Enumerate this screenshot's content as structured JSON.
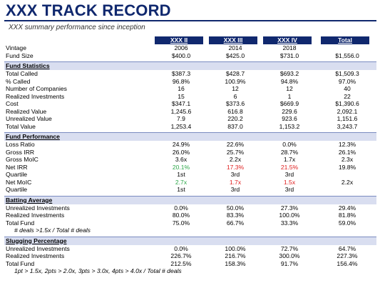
{
  "title": "XXX TRACK RECORD",
  "subtitle": "XXX summary performance since inception",
  "columns": [
    "XXX II",
    "XXX III",
    "XXX IV",
    "Total"
  ],
  "top_rows": [
    {
      "label": "Vintage",
      "values": [
        "2006",
        "2014",
        "2018",
        ""
      ]
    },
    {
      "label": "Fund Size",
      "values": [
        "$400.0",
        "$425.0",
        "$731.0",
        "$1,556.0"
      ]
    }
  ],
  "sections": [
    {
      "title": "Fund Statistics",
      "rows": [
        {
          "label": "Total Called",
          "values": [
            "$387.3",
            "$428.7",
            "$693.2",
            "$1,509.3"
          ]
        },
        {
          "label": "% Called",
          "values": [
            "96.8%",
            "100.9%",
            "94.8%",
            "97.0%"
          ]
        },
        {
          "label": "Number of Companies",
          "values": [
            "16",
            "12",
            "12",
            "40"
          ]
        },
        {
          "label": "Realized Investments",
          "values": [
            "15",
            "6",
            "1",
            "22"
          ]
        },
        {
          "label": "Cost",
          "values": [
            "$347.1",
            "$373.6",
            "$669.9",
            "$1,390.6"
          ]
        },
        {
          "label": "Realized Value",
          "values": [
            "1,245.6",
            "616.8",
            "229.6",
            "2,092.1"
          ]
        },
        {
          "label": "Unrealized Value",
          "values": [
            "7.9",
            "220.2",
            "923.6",
            "1,151.6"
          ]
        },
        {
          "label": "Total Value",
          "values": [
            "1,253.4",
            "837.0",
            "1,153.2",
            "3,243.7"
          ]
        }
      ]
    },
    {
      "title": "Fund Performance",
      "rows": [
        {
          "label": "Loss Ratio",
          "values": [
            "24.9%",
            "22.6%",
            "0.0%",
            "12.3%"
          ]
        },
        {
          "label": "Gross IRR",
          "values": [
            "26.0%",
            "25.7%",
            "28.7%",
            "26.1%"
          ]
        },
        {
          "label": "Gross MoIC",
          "values": [
            "3.6x",
            "2.2x",
            "1.7x",
            "2.3x"
          ]
        },
        {
          "label": "Net IRR",
          "values": [
            "20.1%",
            "17.3%",
            "21.5%",
            "19.8%"
          ],
          "colors": [
            "green",
            "red",
            "red",
            ""
          ]
        },
        {
          "label": "Quartile",
          "values": [
            "1st",
            "3rd",
            "3rd",
            ""
          ]
        },
        {
          "label": "Net MoIC",
          "values": [
            "2.7x",
            "1.7x",
            "1.5x",
            "2.2x"
          ],
          "colors": [
            "green",
            "red",
            "red",
            ""
          ]
        },
        {
          "label": "Quartile",
          "values": [
            "1st",
            "3rd",
            "3rd",
            ""
          ]
        }
      ]
    },
    {
      "title": "Batting Average",
      "rows": [
        {
          "label": "Unrealized Investments",
          "values": [
            "0.0%",
            "50.0%",
            "27.3%",
            "29.4%"
          ]
        },
        {
          "label": "Realized Investments",
          "values": [
            "80.0%",
            "83.3%",
            "100.0%",
            "81.8%"
          ]
        },
        {
          "label": "Total Fund",
          "values": [
            "75.0%",
            "66.7%",
            "33.3%",
            "59.0%"
          ]
        }
      ],
      "note": "# deals >1.5x / Total # deals"
    },
    {
      "title": "Slugging Percentage",
      "rows": [
        {
          "label": "Unrealized Investments",
          "values": [
            "0.0%",
            "100.0%",
            "72.7%",
            "64.7%"
          ]
        },
        {
          "label": "Realized Investments",
          "values": [
            "226.7%",
            "216.7%",
            "300.0%",
            "227.3%"
          ]
        },
        {
          "label": "Total Fund",
          "values": [
            "212.5%",
            "158.3%",
            "91.7%",
            "156.4%"
          ]
        }
      ],
      "note": "1pt > 1.5x, 2pts > 2.0x, 3pts > 3.0x, 4pts > 4.0x / Total # deals"
    }
  ]
}
